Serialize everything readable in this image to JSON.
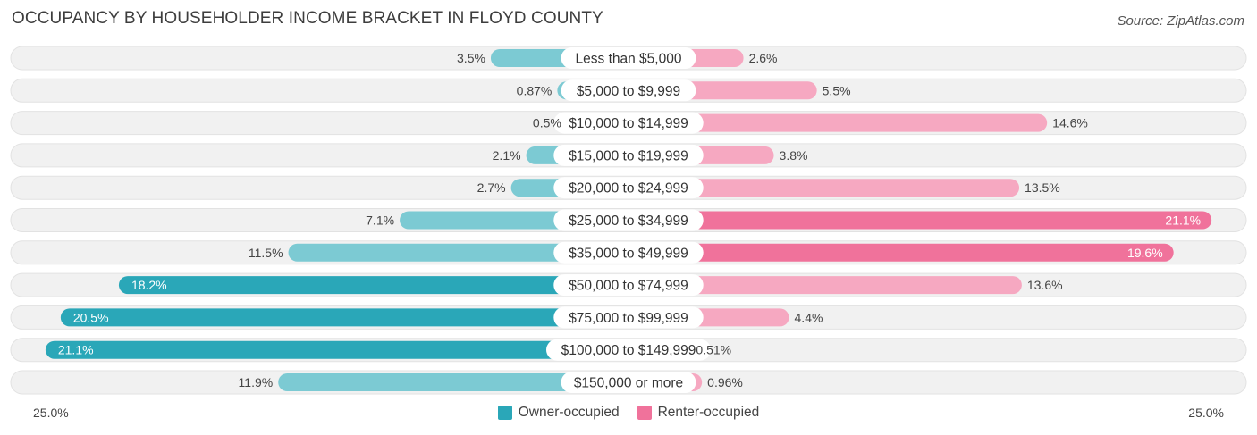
{
  "title": "OCCUPANCY BY HOUSEHOLDER INCOME BRACKET IN FLOYD COUNTY",
  "source": "Source: ZipAtlas.com",
  "colors": {
    "owner": "#2aa7b8",
    "owner_light": "#7ccad3",
    "renter": "#f0729b",
    "renter_light": "#f6a8c1",
    "track": "#f0f0f0"
  },
  "chart_data": {
    "type": "bar",
    "orientation": "diverging-horizontal",
    "title": "OCCUPANCY BY HOUSEHOLDER INCOME BRACKET IN FLOYD COUNTY",
    "categories": [
      "Less than $5,000",
      "$5,000 to $9,999",
      "$10,000 to $14,999",
      "$15,000 to $19,999",
      "$20,000 to $24,999",
      "$25,000 to $34,999",
      "$35,000 to $49,999",
      "$50,000 to $74,999",
      "$75,000 to $99,999",
      "$100,000 to $149,999",
      "$150,000 or more"
    ],
    "series": [
      {
        "name": "Owner-occupied",
        "values": [
          3.5,
          0.87,
          0.5,
          2.1,
          2.7,
          7.1,
          11.5,
          18.2,
          20.5,
          21.1,
          11.9
        ],
        "labels": [
          "3.5%",
          "0.87%",
          "0.5%",
          "2.1%",
          "2.7%",
          "7.1%",
          "11.5%",
          "18.2%",
          "20.5%",
          "21.1%",
          "11.9%"
        ]
      },
      {
        "name": "Renter-occupied",
        "values": [
          2.6,
          5.5,
          14.6,
          3.8,
          13.5,
          21.1,
          19.6,
          13.6,
          4.4,
          0.51,
          0.96
        ],
        "labels": [
          "2.6%",
          "5.5%",
          "14.6%",
          "3.8%",
          "13.5%",
          "21.1%",
          "19.6%",
          "13.6%",
          "4.4%",
          "0.51%",
          "0.96%"
        ]
      }
    ],
    "axis": {
      "min_label": "25.0%",
      "max_label": "25.0%",
      "range": [
        25.0,
        25.0
      ]
    },
    "legend": [
      "Owner-occupied",
      "Renter-occupied"
    ],
    "legend_position": "bottom-center"
  }
}
